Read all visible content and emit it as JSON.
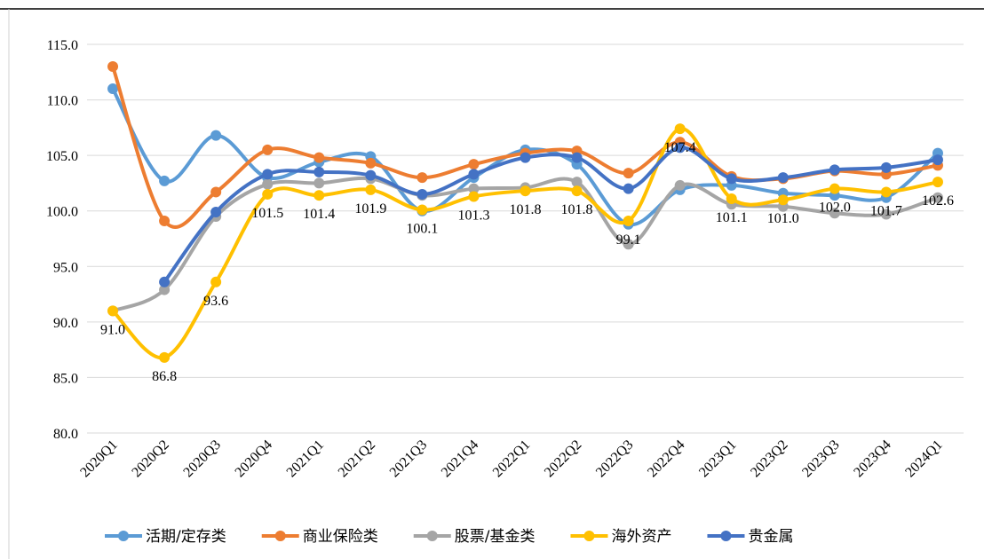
{
  "chart_data": {
    "type": "line",
    "categories": [
      "2020Q1",
      "2020Q2",
      "2020Q3",
      "2020Q4",
      "2021Q1",
      "2021Q2",
      "2021Q3",
      "2021Q4",
      "2022Q1",
      "2022Q2",
      "2022Q3",
      "2022Q4",
      "2023Q1",
      "2023Q2",
      "2023Q3",
      "2023Q4",
      "2024Q1"
    ],
    "series": [
      {
        "name": "活期/定存类",
        "color": "#5b9bd5",
        "values": [
          111.0,
          102.7,
          106.8,
          103.0,
          104.4,
          104.9,
          100.0,
          103.0,
          105.5,
          104.2,
          98.8,
          101.9,
          102.3,
          101.6,
          101.4,
          101.2,
          105.2
        ]
      },
      {
        "name": "商业保险类",
        "color": "#ed7d31",
        "values": [
          113.0,
          99.1,
          101.7,
          105.5,
          104.8,
          104.3,
          103.0,
          104.2,
          105.2,
          105.4,
          103.4,
          106.2,
          103.1,
          102.9,
          103.6,
          103.3,
          104.1
        ]
      },
      {
        "name": "股票/基金类",
        "color": "#a5a5a5",
        "values": [
          91.0,
          92.9,
          99.5,
          102.4,
          102.5,
          102.9,
          101.4,
          102.0,
          102.1,
          102.6,
          97.0,
          102.3,
          100.6,
          100.4,
          99.8,
          99.7,
          101.2
        ]
      },
      {
        "name": "海外资产",
        "color": "#ffc000",
        "values": [
          91.0,
          86.8,
          93.6,
          101.5,
          101.4,
          101.9,
          100.1,
          101.3,
          101.8,
          101.8,
          99.1,
          107.4,
          101.1,
          101.0,
          102.0,
          101.7,
          102.6
        ],
        "value_labels": [
          "91.0",
          "86.8",
          "93.6",
          "101.5",
          "101.4",
          "101.9",
          "100.1",
          "101.3",
          "101.8",
          "101.8",
          "99.1",
          "107.4",
          "101.1",
          "101.0",
          "102.0",
          "101.7",
          "102.6"
        ]
      },
      {
        "name": "贵金属",
        "color": "#4472c4",
        "values": [
          null,
          93.6,
          99.9,
          103.3,
          103.5,
          103.2,
          101.5,
          103.3,
          104.8,
          104.8,
          102.0,
          105.7,
          102.9,
          103.0,
          103.7,
          103.9,
          104.6
        ]
      }
    ],
    "ylim": [
      80,
      115
    ],
    "yticks": [
      {
        "value": 80,
        "label": "80.0"
      },
      {
        "value": 85,
        "label": "85.0"
      },
      {
        "value": 90,
        "label": "90.0"
      },
      {
        "value": 95,
        "label": "95.0"
      },
      {
        "value": 100,
        "label": "100.0"
      },
      {
        "value": 105,
        "label": "105.0"
      },
      {
        "value": 110,
        "label": "110.0"
      },
      {
        "value": 115,
        "label": "115.0"
      }
    ],
    "grid": true,
    "legend": "bottom"
  }
}
